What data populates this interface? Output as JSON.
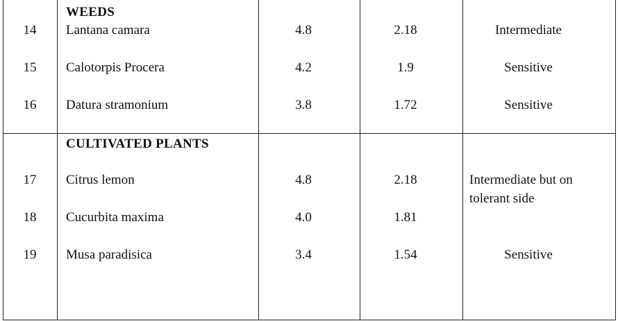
{
  "table": {
    "sections": [
      {
        "heading": "WEEDS",
        "rows": [
          [
            "14",
            "Lantana camara",
            "4.8",
            "2.18",
            "Intermediate"
          ],
          [
            "15",
            "Calotorpis Procera",
            "4.2",
            "1.9",
            "Sensitive"
          ],
          [
            "16",
            "Datura stramonium",
            "3.8",
            "1.72",
            "Sensitive"
          ]
        ]
      },
      {
        "heading": "CULTIVATED PLANTS",
        "rows": [
          [
            "17",
            "Citrus lemon",
            "4.8",
            "2.18",
            "Intermediate but on tolerant side"
          ],
          [
            "18",
            "Cucurbita maxima",
            "4.0",
            "1.81"
          ],
          [
            "19",
            "Musa paradisica",
            "3.4",
            "1.54",
            "Sensitive"
          ]
        ]
      }
    ]
  }
}
